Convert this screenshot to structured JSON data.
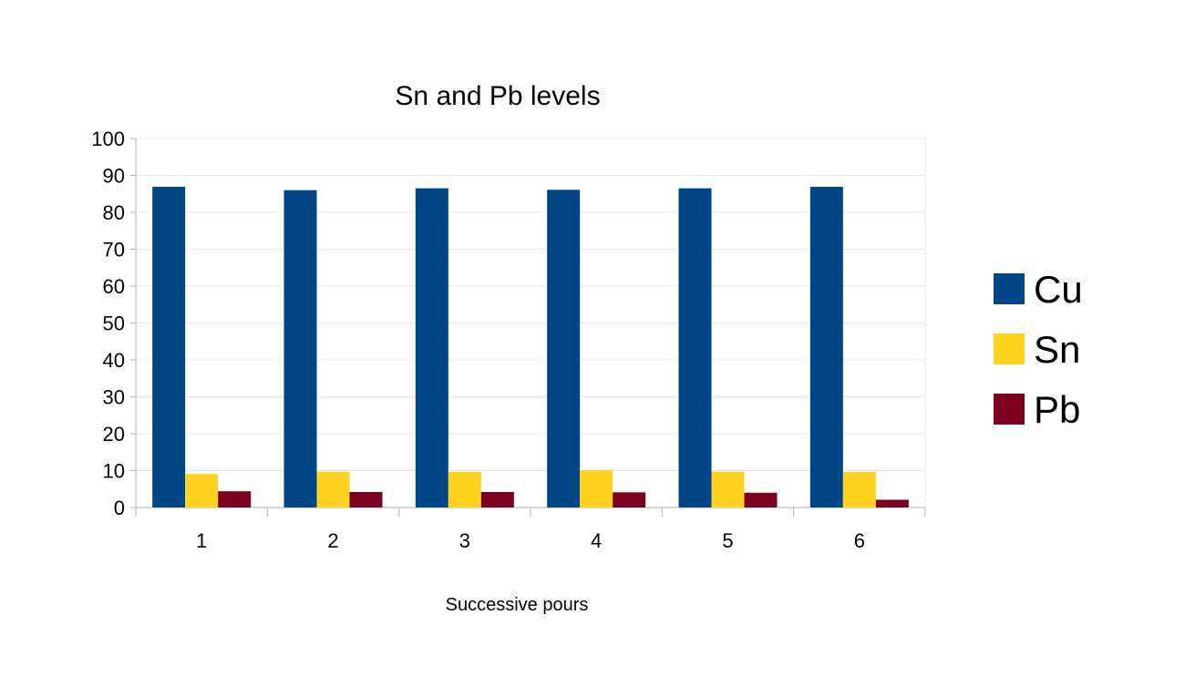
{
  "chart_data": {
    "type": "bar",
    "title": "Sn and Pb levels",
    "xlabel": "Successive pours",
    "ylabel": "",
    "categories": [
      "1",
      "2",
      "3",
      "4",
      "5",
      "6"
    ],
    "series": [
      {
        "name": "Cu",
        "color": "#004586",
        "values": [
          86.9,
          86.0,
          86.5,
          86.1,
          86.5,
          86.9
        ]
      },
      {
        "name": "Sn",
        "color": "#ffd320",
        "values": [
          9.1,
          9.7,
          9.6,
          10.1,
          9.7,
          9.6
        ]
      },
      {
        "name": "Pb",
        "color": "#7e0021",
        "values": [
          4.4,
          4.2,
          4.2,
          4.1,
          4.0,
          2.1
        ]
      }
    ],
    "ylim": [
      0,
      100
    ],
    "yticks": [
      0,
      10,
      20,
      30,
      40,
      50,
      60,
      70,
      80,
      90,
      100
    ],
    "grid": true,
    "legend_position": "right"
  }
}
